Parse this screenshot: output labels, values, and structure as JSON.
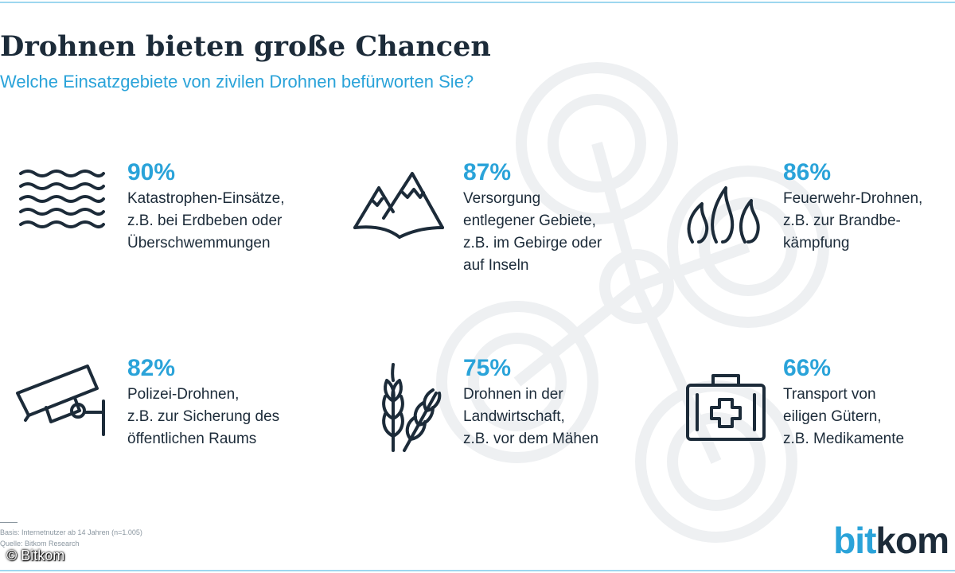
{
  "title": "Drohnen bieten große Chancen",
  "subtitle": "Welche Einsatzgebiete von zivilen Drohnen befürworten Sie?",
  "items": [
    {
      "percent": "90%",
      "lines": [
        "Katastrophen-Einsätze,",
        "z.B. bei Erdbeben oder",
        "Überschwemmungen"
      ],
      "icon": "waves-icon"
    },
    {
      "percent": "87%",
      "lines": [
        "Versorgung",
        "entlegener Gebiete,",
        "z.B. im Gebirge oder",
        "auf Inseln"
      ],
      "icon": "mountain-icon"
    },
    {
      "percent": "86%",
      "lines": [
        "Feuerwehr-Drohnen,",
        "z.B. zur Brandbe-",
        "kämpfung"
      ],
      "icon": "flames-icon"
    },
    {
      "percent": "82%",
      "lines": [
        "Polizei-Drohnen,",
        "z.B. zur Sicherung des",
        "öffentlichen Raums"
      ],
      "icon": "security-camera-icon"
    },
    {
      "percent": "75%",
      "lines": [
        "Drohnen in der",
        "Landwirtschaft,",
        "z.B. vor dem Mähen"
      ],
      "icon": "wheat-icon"
    },
    {
      "percent": "66%",
      "lines": [
        "Transport von",
        "eiligen Gütern,",
        "z.B. Medikamente"
      ],
      "icon": "first-aid-kit-icon"
    }
  ],
  "footnote": {
    "basis": "Basis: Internetnutzer ab 14 Jahren (n=1.005)",
    "source": "Quelle: Bitkom Research"
  },
  "copyright": "© Bitkom",
  "logo": {
    "part1": "bit",
    "part2": "kom"
  },
  "colors": {
    "accent": "#2aa3d9",
    "text": "#1c2b39",
    "watermark": "#eef0f2"
  }
}
